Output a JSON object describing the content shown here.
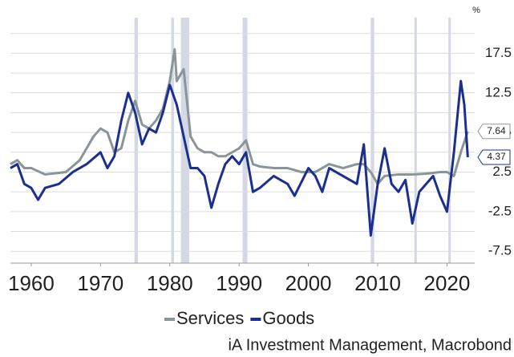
{
  "chart_data": {
    "type": "line",
    "y_unit": "%",
    "source": "iA Investment Management, Macrobond",
    "xlim": [
      1957,
      2024
    ],
    "xticks": [
      1960,
      1970,
      1980,
      1990,
      2000,
      2010,
      2020
    ],
    "ylim": [
      -9,
      22
    ],
    "yticks": [
      17.5,
      12.5,
      7.5,
      2.5,
      -2.5,
      -7.5
    ],
    "y_minor_ticks": [
      20,
      15,
      10,
      5,
      0,
      -5
    ],
    "grid": true,
    "legend_position": "bottom",
    "shaded_periods": [
      [
        1974.9,
        1975.4
      ],
      [
        1980.2,
        1980.6
      ],
      [
        1981.6,
        1982.8
      ],
      [
        1990.5,
        1991.2
      ],
      [
        2009.0,
        2009.5
      ],
      [
        2015.3,
        2015.6
      ],
      [
        2020.2,
        2020.5
      ]
    ],
    "shade_color": "#d3d8e3",
    "series": [
      {
        "name": "Services",
        "color": "#8a9599",
        "x": [
          1957,
          1958,
          1959,
          1960,
          1962,
          1965,
          1967,
          1969,
          1970,
          1971,
          1972,
          1973,
          1974,
          1975,
          1976,
          1977,
          1978,
          1979,
          1980,
          1980.7,
          1981,
          1982,
          1983,
          1984,
          1985,
          1986,
          1987,
          1988,
          1989,
          1990,
          1991,
          1992,
          1993,
          1995,
          1997,
          1999,
          2001,
          2003,
          2005,
          2007,
          2008,
          2009,
          2010,
          2011,
          2013,
          2015,
          2017,
          2019,
          2020,
          2021,
          2022,
          2023
        ],
        "values": [
          3.5,
          4,
          3,
          3,
          2.2,
          2.5,
          4,
          7,
          8,
          7.5,
          5,
          5.5,
          9,
          11.5,
          8.5,
          8,
          9,
          10.5,
          14,
          18,
          14,
          15.5,
          7,
          5.5,
          5,
          5,
          4.5,
          4.5,
          5,
          5.5,
          6.5,
          3.5,
          3.2,
          3,
          3,
          2.5,
          2.5,
          3.5,
          3,
          3.5,
          3.5,
          2.5,
          1,
          2,
          2.2,
          2.2,
          2.3,
          2.5,
          2.5,
          2,
          5,
          7.64
        ],
        "end_label": "7.64"
      },
      {
        "name": "Goods",
        "color": "#1a2f8f",
        "x": [
          1957,
          1958,
          1959,
          1960,
          1961,
          1962,
          1964,
          1966,
          1968,
          1970,
          1971,
          1972,
          1973,
          1974,
          1975,
          1976,
          1977,
          1978,
          1979,
          1980,
          1981,
          1982,
          1983,
          1984,
          1985,
          1986,
          1987,
          1988,
          1989,
          1990,
          1991,
          1992,
          1993,
          1995,
          1997,
          1998,
          2000,
          2001,
          2002,
          2003,
          2005,
          2007,
          2008,
          2009,
          2010,
          2011,
          2012,
          2013,
          2014,
          2015,
          2016,
          2017,
          2018,
          2019,
          2020,
          2021,
          2022,
          2022.5,
          2023
        ],
        "values": [
          3,
          3.5,
          1,
          0.5,
          -1,
          0.5,
          1,
          2.5,
          3.5,
          5,
          3,
          4.5,
          9,
          12.5,
          10,
          6,
          8,
          7.5,
          10,
          13.5,
          11,
          7,
          3,
          3,
          2,
          -2,
          1,
          3.5,
          4.5,
          3.5,
          5,
          0,
          0.5,
          2,
          1,
          -0.5,
          3,
          2,
          0,
          3,
          2,
          1,
          6,
          -5.5,
          1,
          5.5,
          1,
          0,
          1.5,
          -4,
          0,
          1,
          2,
          -0.5,
          -2.5,
          5,
          14,
          11,
          4.37
        ],
        "end_label": "4.37"
      }
    ]
  }
}
